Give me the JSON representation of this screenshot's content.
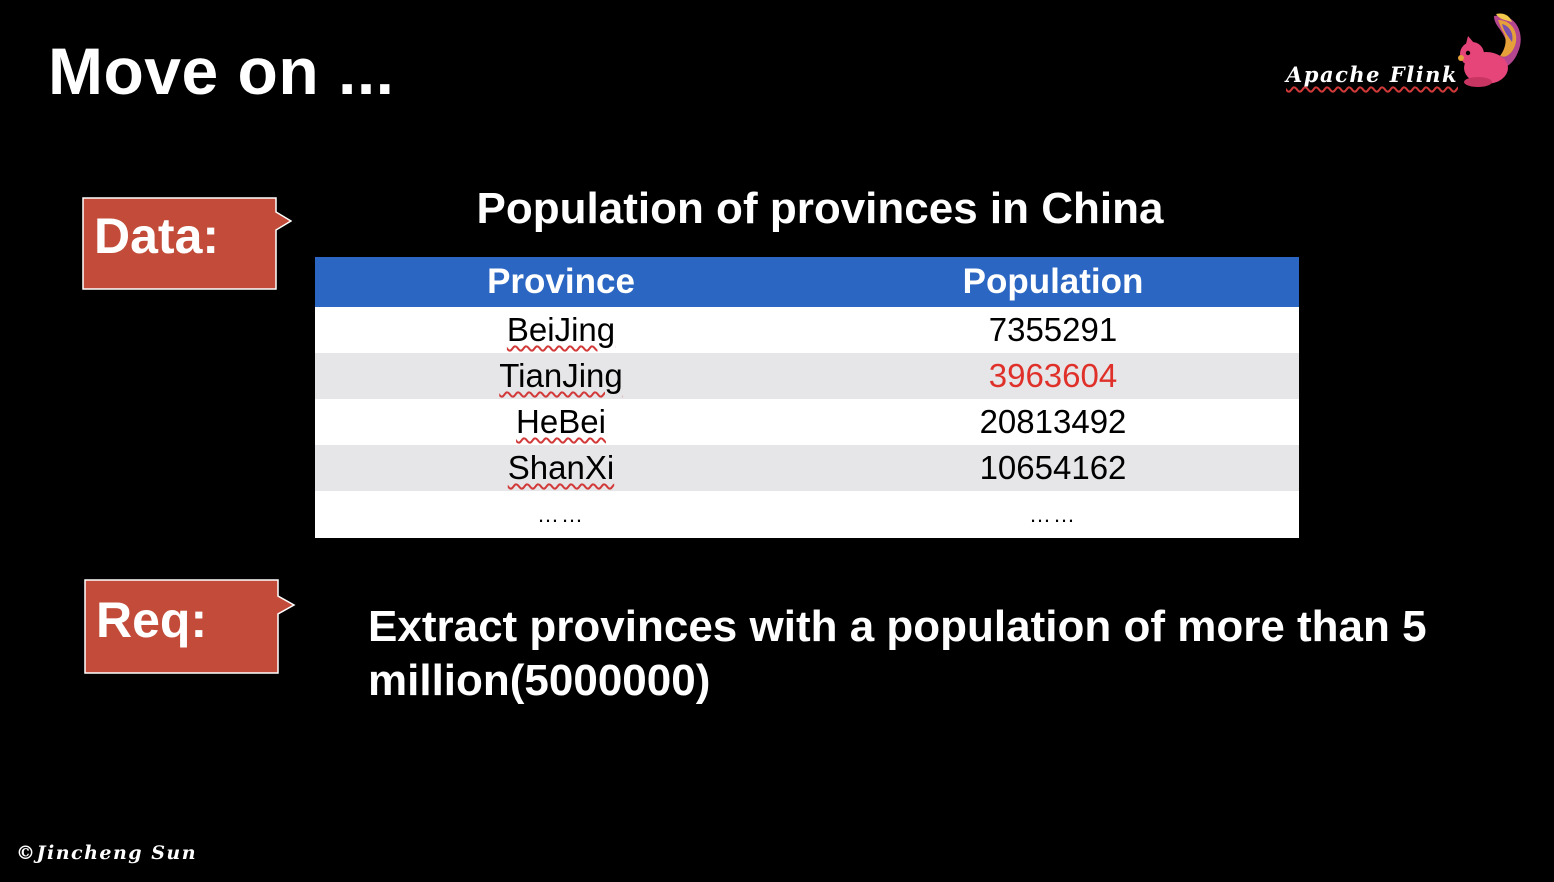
{
  "slide": {
    "title": "Move on ...",
    "brand": {
      "text": "Apache Flink",
      "logo_icon": "flink-squirrel-icon"
    },
    "copyright": "©Jincheng Sun"
  },
  "data_section": {
    "callout_label": "Data:",
    "callout_color": "#c24c39",
    "table_title": "Population of provinces in China",
    "header_color": "#2b66c2",
    "highlight_color": "#e0302a",
    "columns": [
      "Province",
      "Population"
    ],
    "rows": [
      {
        "province": "BeiJing",
        "population": "7355291"
      },
      {
        "province": "TianJing",
        "population": "3963604",
        "highlight": true
      },
      {
        "province": "HeBei",
        "population": "20813492"
      },
      {
        "province": "ShanXi",
        "population": "10654162"
      },
      {
        "province": "……",
        "population": "……"
      }
    ]
  },
  "req_section": {
    "callout_label": "Req:",
    "text": "Extract provinces with a population of more than 5 million(5000000)"
  }
}
